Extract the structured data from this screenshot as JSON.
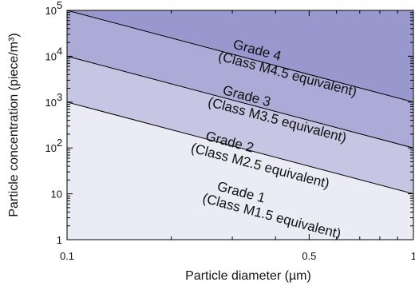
{
  "chart_data": {
    "type": "area",
    "title": "",
    "xlabel": "Particle diameter (µm)",
    "ylabel": "Particle concentration (piece/m³)",
    "x_scale": "log",
    "y_scale": "log",
    "xlim": [
      0.1,
      1
    ],
    "ylim": [
      1,
      100000
    ],
    "grid": false,
    "x_ticks": [
      {
        "value": 0.1,
        "label": "0.1"
      },
      {
        "value": 0.5,
        "label": "0.5"
      },
      {
        "value": 1,
        "label": "1"
      }
    ],
    "x_minor_ticks": [
      0.2,
      0.3,
      0.4,
      0.6,
      0.7,
      0.8,
      0.9
    ],
    "y_ticks": [
      {
        "value": 1,
        "base": "1",
        "exp": ""
      },
      {
        "value": 10,
        "base": "10",
        "exp": ""
      },
      {
        "value": 100,
        "base": "10",
        "exp": "2"
      },
      {
        "value": 1000,
        "base": "10",
        "exp": "3"
      },
      {
        "value": 10000,
        "base": "10",
        "exp": "4"
      },
      {
        "value": 100000,
        "base": "10",
        "exp": "5"
      }
    ],
    "boundaries": [
      {
        "x": [
          0.1,
          1
        ],
        "y": [
          1000,
          10
        ]
      },
      {
        "x": [
          0.1,
          1
        ],
        "y": [
          10000,
          100
        ]
      },
      {
        "x": [
          0.1,
          1
        ],
        "y": [
          100000,
          1000
        ]
      }
    ],
    "bands": [
      {
        "grade": "Grade 1",
        "equivalent": "(Class M1.5 equivalent)",
        "color": "#ebebf5",
        "label_x": 0.27,
        "label_y": 12
      },
      {
        "grade": "Grade 2",
        "equivalent": "(Class M2.5 equivalent)",
        "color": "#c6c5e3",
        "label_x": 0.25,
        "label_y": 150
      },
      {
        "grade": "Grade 3",
        "equivalent": "(Class M3.5 equivalent)",
        "color": "#acaad6",
        "label_x": 0.28,
        "label_y": 1500
      },
      {
        "grade": "Grade 4",
        "equivalent": "(Class M4.5 equivalent)",
        "color": "#9897ce",
        "label_x": 0.3,
        "label_y": 15000
      }
    ],
    "line_color": "#000000"
  }
}
